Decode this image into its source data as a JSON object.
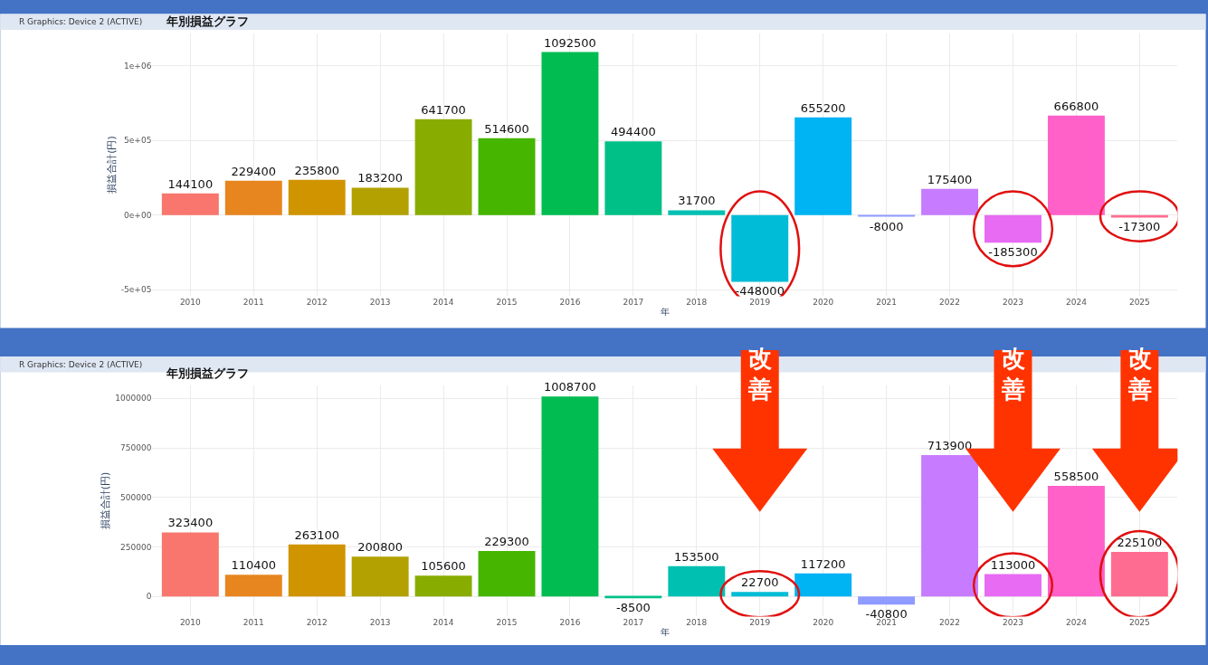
{
  "chart_data": [
    {
      "type": "bar",
      "title": "年別損益グラフ",
      "xlabel": "年",
      "ylabel": "損益合計(円)",
      "categories": [
        "2010",
        "2011",
        "2012",
        "2013",
        "2014",
        "2015",
        "2016",
        "2017",
        "2018",
        "2019",
        "2020",
        "2021",
        "2022",
        "2023",
        "2024",
        "2025"
      ],
      "values": [
        144100,
        229400,
        235800,
        183200,
        641700,
        514600,
        1092500,
        494400,
        31700,
        -448000,
        655200,
        -8000,
        175400,
        -185300,
        666800,
        -17300
      ],
      "colors": [
        "#f8766d",
        "#e7851e",
        "#d09400",
        "#b2a100",
        "#89ac00",
        "#45b500",
        "#00bc51",
        "#00c087",
        "#00c0b2",
        "#00bcd6",
        "#00b3f2",
        "#8f9bff",
        "#c77cff",
        "#e76bf3",
        "#ff61c9",
        "#ff6c91"
      ],
      "ylim": [
        -545000,
        1220000
      ],
      "yticks": [
        {
          "value": -500000,
          "label": "-5e+05"
        },
        {
          "value": 0,
          "label": "0e+00"
        },
        {
          "value": 500000,
          "label": "5e+05"
        },
        {
          "value": 1000000,
          "label": "1e+06"
        }
      ],
      "grid": true,
      "data_labels": true,
      "annotations": [
        "R Graphics: Device 2 (ACTIVE)"
      ]
    },
    {
      "type": "bar",
      "title": "年別損益グラフ",
      "xlabel": "年",
      "ylabel": "損益合計(円)",
      "categories": [
        "2010",
        "2011",
        "2012",
        "2013",
        "2014",
        "2015",
        "2016",
        "2017",
        "2018",
        "2019",
        "2020",
        "2021",
        "2022",
        "2023",
        "2024",
        "2025"
      ],
      "values": [
        323400,
        110400,
        263100,
        200800,
        105600,
        229300,
        1008700,
        -8500,
        153500,
        22700,
        117200,
        -40800,
        713900,
        113000,
        558500,
        225100
      ],
      "colors": [
        "#f8766d",
        "#e7851e",
        "#d09400",
        "#b2a100",
        "#89ac00",
        "#45b500",
        "#00bc51",
        "#00c087",
        "#00c0b2",
        "#00bcd6",
        "#00b3f2",
        "#8f9bff",
        "#c77cff",
        "#e76bf3",
        "#ff61c9",
        "#ff6c91"
      ],
      "ylim": [
        -101000,
        1067000
      ],
      "yticks": [
        0,
        250000,
        500000,
        750000,
        1000000
      ],
      "grid": true,
      "data_labels": true,
      "annotations": [
        "R Graphics: Device 2 (ACTIVE)",
        "改善",
        "改善",
        "改善"
      ]
    }
  ]
}
